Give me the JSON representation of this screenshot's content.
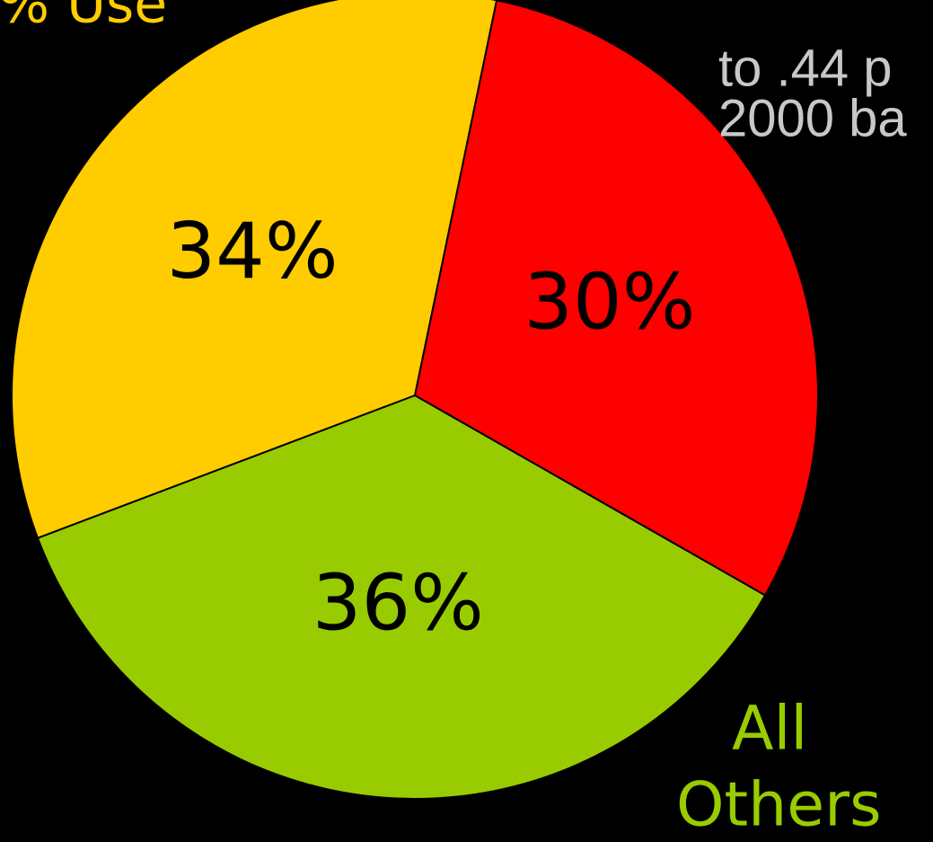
{
  "chart_data": {
    "type": "pie",
    "values": [
      30,
      36,
      34
    ],
    "value_labels": [
      "30%",
      "36%",
      "34%"
    ],
    "colors": [
      "#ff0000",
      "#99cc00",
      "#ffcc00"
    ],
    "annotations": [
      "% Use",
      "to .44 p",
      "2000 ba",
      "All",
      "Others"
    ]
  }
}
